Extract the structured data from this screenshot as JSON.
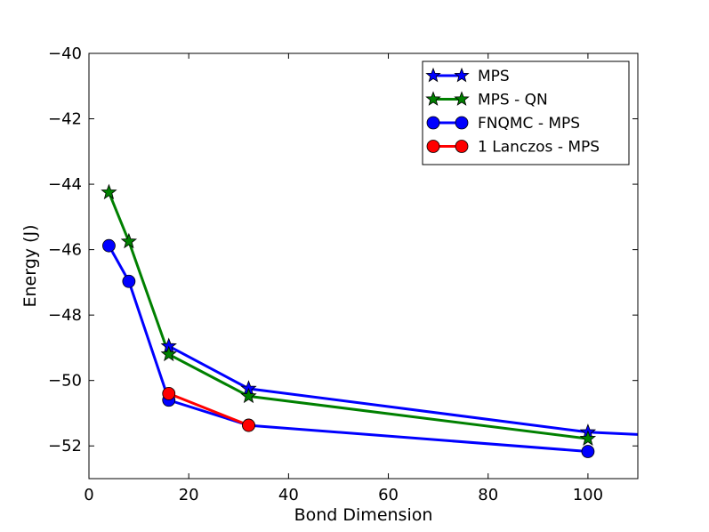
{
  "chart_data": {
    "type": "line",
    "title": "",
    "xlabel": "Bond Dimension",
    "ylabel": "Energy (J)",
    "xlim": [
      0,
      110
    ],
    "ylim": [
      -53,
      -40
    ],
    "xticks": [
      0,
      20,
      40,
      60,
      80,
      100
    ],
    "yticks": [
      -40,
      -42,
      -44,
      -46,
      -48,
      -50,
      -52
    ],
    "xtick_labels": [
      "0",
      "20",
      "40",
      "60",
      "80",
      "100"
    ],
    "ytick_labels": [
      "−40",
      "−42",
      "−44",
      "−46",
      "−48",
      "−50",
      "−52"
    ],
    "grid": false,
    "legend_position": "top-right",
    "series": [
      {
        "name": "MPS",
        "color": "#0000ff",
        "marker": "star",
        "x": [
          16,
          32,
          100,
          110
        ],
        "y": [
          -48.95,
          -50.25,
          -51.58,
          -51.65
        ],
        "marker_points": 3
      },
      {
        "name": "MPS - QN",
        "color": "#008000",
        "marker": "star",
        "x": [
          4,
          8,
          16,
          32,
          100
        ],
        "y": [
          -44.25,
          -45.75,
          -49.2,
          -50.48,
          -51.78
        ]
      },
      {
        "name": "FNQMC - MPS",
        "color": "#0000ff",
        "marker": "circle",
        "x": [
          4,
          8,
          16,
          32,
          100
        ],
        "y": [
          -45.88,
          -46.97,
          -50.6,
          -51.37,
          -52.17
        ]
      },
      {
        "name": "1 Lanczos - MPS",
        "color": "#ff0000",
        "marker": "circle",
        "x": [
          16,
          32
        ],
        "y": [
          -50.4,
          -51.37
        ]
      }
    ]
  }
}
